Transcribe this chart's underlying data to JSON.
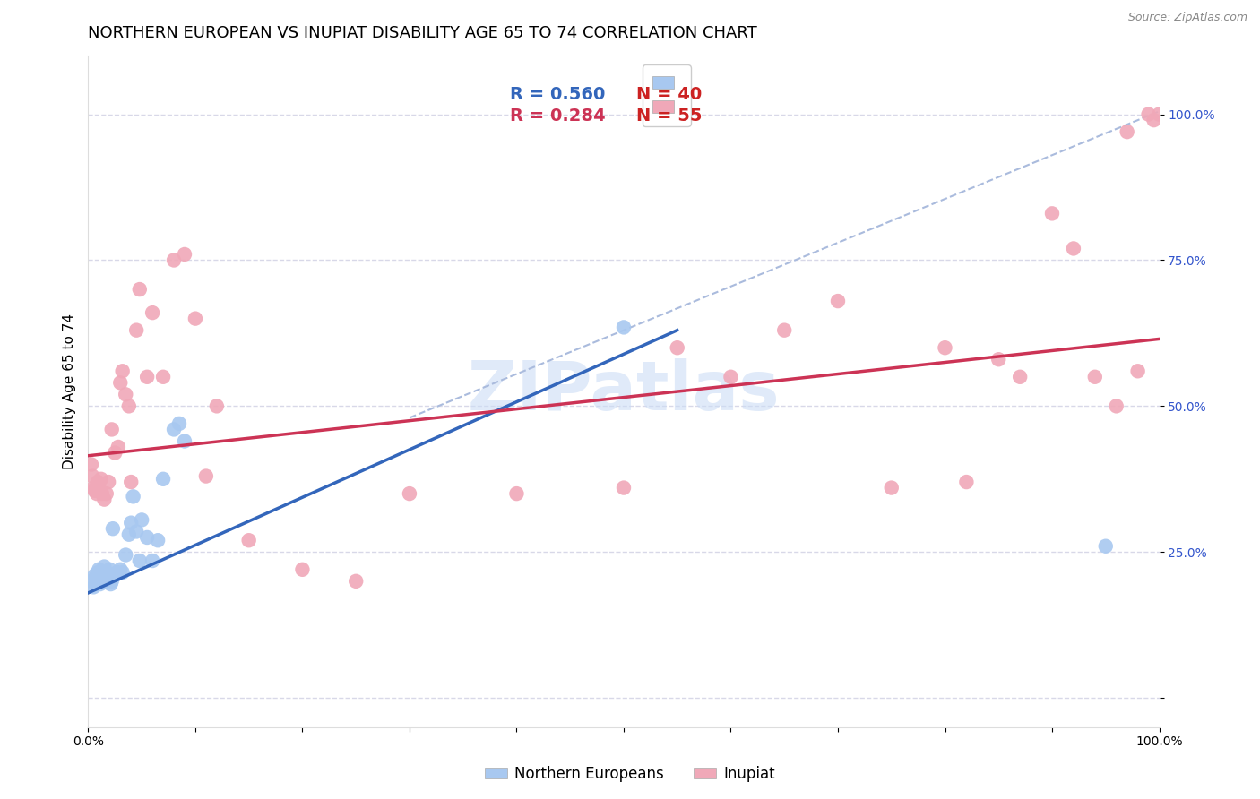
{
  "title": "NORTHERN EUROPEAN VS INUPIAT DISABILITY AGE 65 TO 74 CORRELATION CHART",
  "source": "Source: ZipAtlas.com",
  "ylabel": "Disability Age 65 to 74",
  "xlim": [
    0,
    1
  ],
  "ylim": [
    -0.05,
    1.1
  ],
  "ytick_positions": [
    0.0,
    0.25,
    0.5,
    0.75,
    1.0
  ],
  "yticklabels": [
    "",
    "25.0%",
    "50.0%",
    "75.0%",
    "100.0%"
  ],
  "legend_blue_R": "R = 0.560",
  "legend_blue_N": "N = 40",
  "legend_pink_R": "R = 0.284",
  "legend_pink_N": "N = 55",
  "blue_color": "#a8c8f0",
  "pink_color": "#f0a8b8",
  "blue_line_color": "#3366bb",
  "pink_line_color": "#cc3355",
  "dashed_line_color": "#aabbdd",
  "background_color": "#ffffff",
  "grid_color": "#d8d8e8",
  "blue_scatter_x": [
    0.003,
    0.005,
    0.006,
    0.007,
    0.008,
    0.009,
    0.01,
    0.011,
    0.012,
    0.013,
    0.014,
    0.015,
    0.016,
    0.017,
    0.018,
    0.019,
    0.02,
    0.021,
    0.022,
    0.023,
    0.025,
    0.027,
    0.03,
    0.032,
    0.035,
    0.038,
    0.04,
    0.042,
    0.045,
    0.048,
    0.05,
    0.055,
    0.06,
    0.065,
    0.07,
    0.08,
    0.085,
    0.09,
    0.5,
    0.95
  ],
  "blue_scatter_y": [
    0.2,
    0.19,
    0.21,
    0.205,
    0.21,
    0.215,
    0.22,
    0.195,
    0.215,
    0.2,
    0.215,
    0.225,
    0.2,
    0.215,
    0.205,
    0.21,
    0.22,
    0.195,
    0.2,
    0.29,
    0.21,
    0.215,
    0.22,
    0.215,
    0.245,
    0.28,
    0.3,
    0.345,
    0.285,
    0.235,
    0.305,
    0.275,
    0.235,
    0.27,
    0.375,
    0.46,
    0.47,
    0.44,
    0.635,
    0.26
  ],
  "pink_scatter_x": [
    0.003,
    0.004,
    0.005,
    0.006,
    0.007,
    0.008,
    0.009,
    0.01,
    0.012,
    0.013,
    0.015,
    0.017,
    0.019,
    0.022,
    0.025,
    0.028,
    0.03,
    0.032,
    0.035,
    0.038,
    0.04,
    0.045,
    0.048,
    0.055,
    0.06,
    0.07,
    0.08,
    0.09,
    0.1,
    0.11,
    0.12,
    0.15,
    0.2,
    0.25,
    0.3,
    0.4,
    0.5,
    0.55,
    0.6,
    0.65,
    0.7,
    0.75,
    0.8,
    0.82,
    0.85,
    0.87,
    0.9,
    0.92,
    0.94,
    0.96,
    0.97,
    0.98,
    0.99,
    0.995,
    1.0
  ],
  "pink_scatter_y": [
    0.4,
    0.38,
    0.36,
    0.355,
    0.36,
    0.35,
    0.37,
    0.36,
    0.375,
    0.35,
    0.34,
    0.35,
    0.37,
    0.46,
    0.42,
    0.43,
    0.54,
    0.56,
    0.52,
    0.5,
    0.37,
    0.63,
    0.7,
    0.55,
    0.66,
    0.55,
    0.75,
    0.76,
    0.65,
    0.38,
    0.5,
    0.27,
    0.22,
    0.2,
    0.35,
    0.35,
    0.36,
    0.6,
    0.55,
    0.63,
    0.68,
    0.36,
    0.6,
    0.37,
    0.58,
    0.55,
    0.83,
    0.77,
    0.55,
    0.5,
    0.97,
    0.56,
    1.0,
    0.99,
    1.0
  ],
  "blue_trendline_x": [
    0.0,
    0.55
  ],
  "blue_trendline_y": [
    0.18,
    0.63
  ],
  "pink_trendline_x": [
    0.0,
    1.0
  ],
  "pink_trendline_y": [
    0.415,
    0.615
  ],
  "dashed_line_x": [
    0.3,
    1.02
  ],
  "dashed_line_y": [
    0.48,
    1.02
  ],
  "watermark": "ZIPatlas",
  "title_fontsize": 13,
  "label_fontsize": 11,
  "tick_fontsize": 10,
  "legend_fontsize": 14
}
